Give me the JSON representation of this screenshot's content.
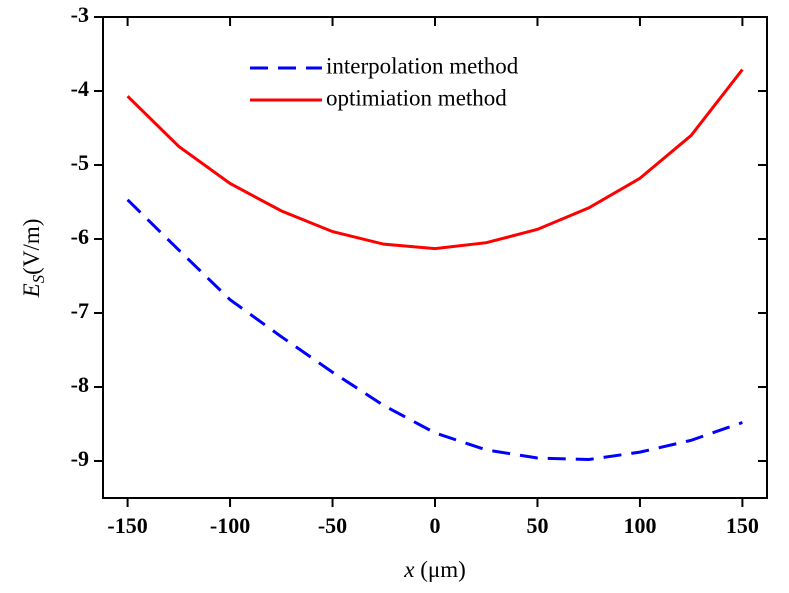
{
  "chart_data": {
    "type": "line",
    "x_label": {
      "symbol": "x",
      "unit": "(μm)"
    },
    "y_label": {
      "symbol": "E",
      "subscript": "S",
      "unit": "(V/m)"
    },
    "x": [
      -150,
      -125,
      -100,
      -75,
      -50,
      -25,
      0,
      25,
      50,
      75,
      100,
      125,
      150
    ],
    "series": [
      {
        "name": "interpolation method",
        "color": "#0000ff",
        "line_style": "dashed",
        "values": [
          -5.47,
          -6.15,
          -6.82,
          -7.32,
          -7.8,
          -8.25,
          -8.62,
          -8.85,
          -8.96,
          -8.98,
          -8.88,
          -8.72,
          -8.48
        ]
      },
      {
        "name": "optimiation method",
        "color": "#ff0000",
        "line_style": "solid",
        "values": [
          -4.07,
          -4.75,
          -5.25,
          -5.62,
          -5.9,
          -6.07,
          -6.13,
          -6.05,
          -5.87,
          -5.58,
          -5.18,
          -4.6,
          -3.71
        ]
      }
    ],
    "xlim": [
      -162,
      162
    ],
    "ylim": [
      -9.5,
      -3
    ],
    "xticks": [
      -150,
      -100,
      -50,
      0,
      50,
      100,
      150
    ],
    "yticks": [
      -9,
      -8,
      -7,
      -6,
      -5,
      -4,
      -3
    ],
    "legend": "upper center"
  }
}
